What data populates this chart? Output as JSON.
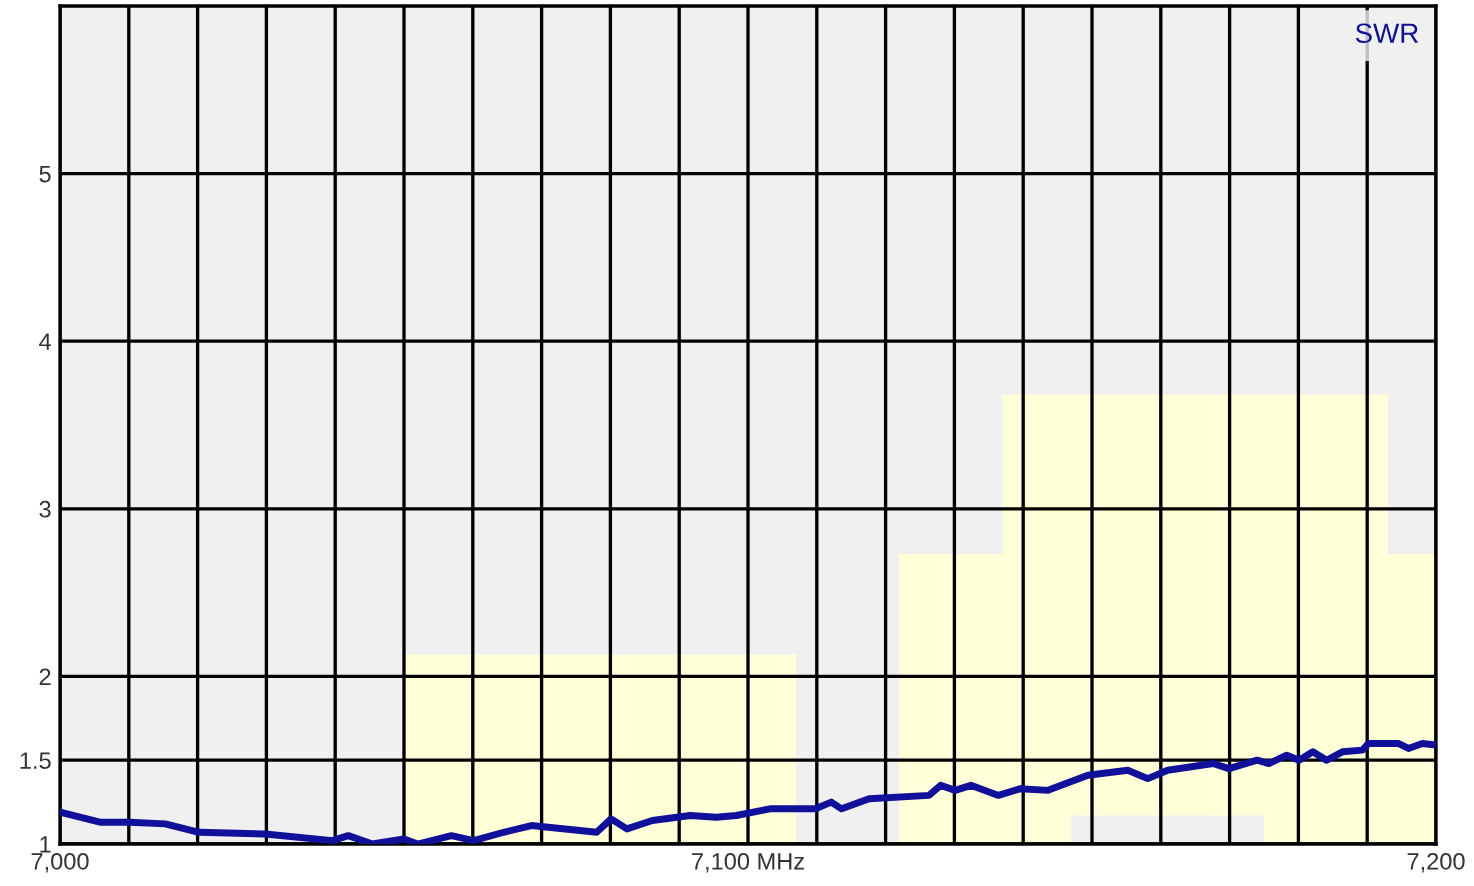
{
  "chart_data": {
    "type": "line",
    "xlim": [
      7000,
      7200
    ],
    "xticks": [
      {
        "value": 7000,
        "label": "7,000"
      },
      {
        "value": 7010,
        "label": null
      },
      {
        "value": 7020,
        "label": null
      },
      {
        "value": 7030,
        "label": null
      },
      {
        "value": 7040,
        "label": null
      },
      {
        "value": 7050,
        "label": null
      },
      {
        "value": 7060,
        "label": null
      },
      {
        "value": 7070,
        "label": null
      },
      {
        "value": 7080,
        "label": null
      },
      {
        "value": 7090,
        "label": null
      },
      {
        "value": 7100,
        "label": "7,100 MHz"
      },
      {
        "value": 7110,
        "label": null
      },
      {
        "value": 7120,
        "label": null
      },
      {
        "value": 7130,
        "label": null
      },
      {
        "value": 7140,
        "label": null
      },
      {
        "value": 7150,
        "label": null
      },
      {
        "value": 7160,
        "label": null
      },
      {
        "value": 7170,
        "label": null
      },
      {
        "value": 7180,
        "label": null
      },
      {
        "value": 7190,
        "label": null
      },
      {
        "value": 7200,
        "label": "7,200"
      }
    ],
    "ylim": [
      1,
      6
    ],
    "yticks": [
      1,
      1.5,
      2,
      3,
      4,
      5
    ],
    "grid": true,
    "legend": "top right",
    "series": [
      {
        "type": "area",
        "color": "#ffffd8",
        "x": [
          7050,
          7107
        ],
        "values": [
          2.13,
          2.13
        ]
      },
      {
        "type": "area",
        "color": "#ffffd8",
        "x": [
          7122,
          7137,
          7137,
          7193,
          7193,
          7200
        ],
        "values": [
          2.73,
          2.73,
          3.68,
          3.68,
          2.73,
          2.73
        ]
      },
      {
        "type": "area",
        "color": "#f0f0f0",
        "x": [
          7147,
          7175
        ],
        "values": [
          1.17,
          1.17
        ]
      },
      {
        "name": "SWR",
        "color": "#10109a",
        "x": [
          7000,
          7005.8,
          7010.1,
          7015.3,
          7020.2,
          7029.8,
          7039.6,
          7041.9,
          7045.4,
          7050,
          7052,
          7056.9,
          7060.1,
          7064.5,
          7068.5,
          7078,
          7080.1,
          7082.4,
          7086.1,
          7091.6,
          7095.4,
          7098.3,
          7103.2,
          7109.8,
          7112.1,
          7113.6,
          7117.6,
          7126.3,
          7128,
          7130.1,
          7132.4,
          7136.4,
          7139.6,
          7143.6,
          7149.4,
          7155.2,
          7158.1,
          7161,
          7167.6,
          7169.9,
          7174,
          7175.7,
          7178.3,
          7180.1,
          7182.1,
          7184.1,
          7186.4,
          7189.3,
          7190.2,
          7194.5,
          7196,
          7198,
          7200
        ],
        "values": [
          1.19,
          1.13,
          1.13,
          1.12,
          1.07,
          1.06,
          1.02,
          1.05,
          1.0,
          1.03,
          1.0,
          1.05,
          1.02,
          1.07,
          1.11,
          1.07,
          1.15,
          1.09,
          1.14,
          1.17,
          1.16,
          1.17,
          1.21,
          1.21,
          1.25,
          1.21,
          1.27,
          1.29,
          1.35,
          1.32,
          1.35,
          1.29,
          1.33,
          1.32,
          1.41,
          1.44,
          1.39,
          1.44,
          1.48,
          1.45,
          1.5,
          1.48,
          1.53,
          1.5,
          1.55,
          1.5,
          1.55,
          1.56,
          1.6,
          1.6,
          1.57,
          1.6,
          1.59
        ]
      }
    ]
  }
}
